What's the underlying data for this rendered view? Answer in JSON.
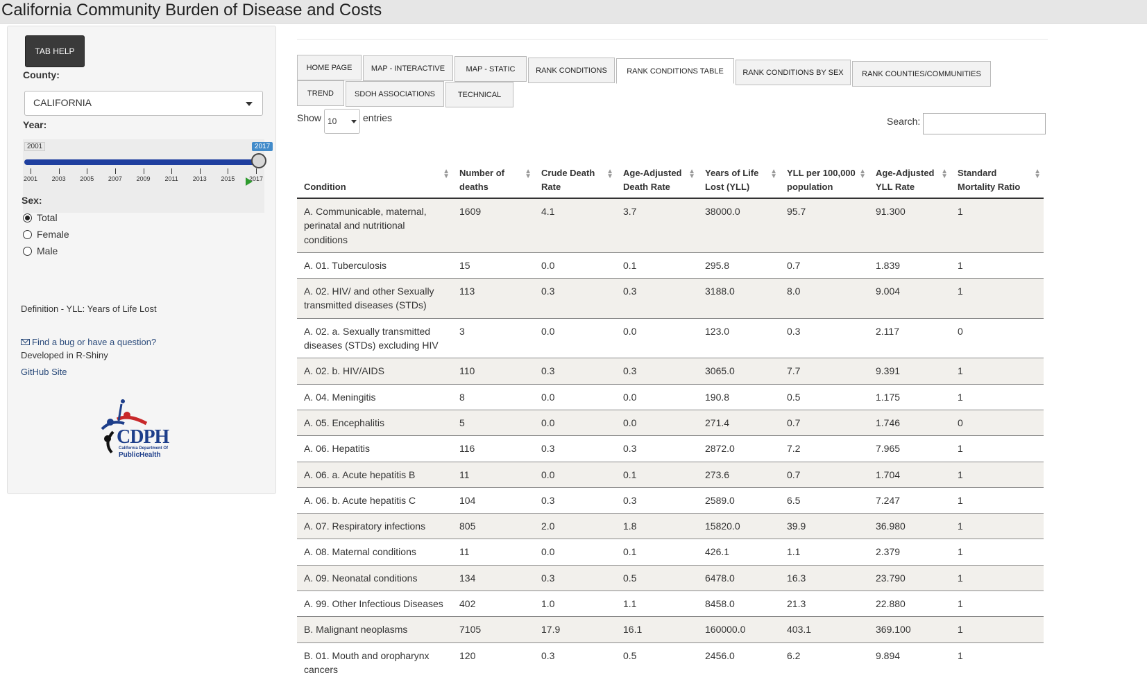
{
  "app": {
    "title": "California Community Burden of Disease and Costs"
  },
  "sidebar": {
    "tab_help_label": "TAB HELP",
    "county_label": "County:",
    "county_value": "CALIFORNIA",
    "year_label": "Year:",
    "year_slider": {
      "min": 2001,
      "max": 2017,
      "value": 2017,
      "min_label": "2001",
      "value_label": "2017",
      "tick_labels": [
        "2001",
        "2003",
        "2005",
        "2007",
        "2009",
        "2011",
        "2013",
        "2015",
        "2017"
      ]
    },
    "sex_label": "Sex:",
    "sex_options": [
      {
        "label": "Total",
        "checked": true
      },
      {
        "label": "Female",
        "checked": false
      },
      {
        "label": "Male",
        "checked": false
      }
    ],
    "definition": "Definition - YLL: Years of Life Lost",
    "bug_link": "Find a bug or have a question?",
    "developed_text": "Developed in R-Shiny",
    "github_link": "GitHub Site",
    "logo": {
      "name": "CDPH",
      "line1": "California Department Of",
      "line2": "PublicHealth"
    }
  },
  "tabs": [
    {
      "label": "HOME PAGE",
      "active": false
    },
    {
      "label": "MAP - INTERACTIVE",
      "active": false
    },
    {
      "label": "MAP - STATIC",
      "active": false
    },
    {
      "label": "RANK CONDITIONS",
      "active": false
    },
    {
      "label": "RANK CONDITIONS TABLE",
      "active": true
    },
    {
      "label": "RANK CONDITIONS BY SEX",
      "active": false
    },
    {
      "label": "RANK COUNTIES/COMMUNITIES",
      "active": false
    },
    {
      "label": "TREND",
      "active": false
    },
    {
      "label": "SDOH ASSOCIATIONS",
      "active": false
    },
    {
      "label": "TECHNICAL",
      "active": false
    }
  ],
  "table_controls": {
    "show_label": "Show",
    "entries_value": "10",
    "entries_label": "entries",
    "search_label": "Search:",
    "search_value": ""
  },
  "table": {
    "columns": [
      "Condition",
      "Number of deaths",
      "Crude Death Rate",
      "Age-Adjusted Death Rate",
      "Years of Life Lost (YLL)",
      "YLL per 100,000 population",
      "Age-Adjusted YLL Rate",
      "Standard Mortality Ratio"
    ],
    "rows": [
      [
        "A. Communicable, maternal, perinatal and nutritional conditions",
        "1609",
        "4.1",
        "3.7",
        "38000.0",
        "95.7",
        "91.300",
        "1"
      ],
      [
        "A. 01. Tuberculosis",
        "15",
        "0.0",
        "0.1",
        "295.8",
        "0.7",
        "1.839",
        "1"
      ],
      [
        "A. 02. HIV/ and other Sexually transmitted diseases (STDs)",
        "113",
        "0.3",
        "0.3",
        "3188.0",
        "8.0",
        "9.004",
        "1"
      ],
      [
        "A. 02. a. Sexually transmitted diseases (STDs) excluding HIV",
        "3",
        "0.0",
        "0.0",
        "123.0",
        "0.3",
        "2.117",
        "0"
      ],
      [
        "A. 02. b. HIV/AIDS",
        "110",
        "0.3",
        "0.3",
        "3065.0",
        "7.7",
        "9.391",
        "1"
      ],
      [
        "A. 04. Meningitis",
        "8",
        "0.0",
        "0.0",
        "190.8",
        "0.5",
        "1.175",
        "1"
      ],
      [
        "A. 05. Encephalitis",
        "5",
        "0.0",
        "0.0",
        "271.4",
        "0.7",
        "1.746",
        "0"
      ],
      [
        "A. 06. Hepatitis",
        "116",
        "0.3",
        "0.3",
        "2872.0",
        "7.2",
        "7.965",
        "1"
      ],
      [
        "A. 06. a. Acute hepatitis B",
        "11",
        "0.0",
        "0.1",
        "273.6",
        "0.7",
        "1.704",
        "1"
      ],
      [
        "A. 06. b. Acute hepatitis C",
        "104",
        "0.3",
        "0.3",
        "2589.0",
        "6.5",
        "7.247",
        "1"
      ],
      [
        "A. 07. Respiratory infections",
        "805",
        "2.0",
        "1.8",
        "15820.0",
        "39.9",
        "36.980",
        "1"
      ],
      [
        "A. 08. Maternal conditions",
        "11",
        "0.0",
        "0.1",
        "426.1",
        "1.1",
        "2.379",
        "1"
      ],
      [
        "A. 09. Neonatal conditions",
        "134",
        "0.3",
        "0.5",
        "6478.0",
        "16.3",
        "23.790",
        "1"
      ],
      [
        "A. 99. Other Infectious Diseases",
        "402",
        "1.0",
        "1.1",
        "8458.0",
        "21.3",
        "22.880",
        "1"
      ],
      [
        "B. Malignant neoplasms",
        "7105",
        "17.9",
        "16.1",
        "160000.0",
        "403.1",
        "369.100",
        "1"
      ],
      [
        "B. 01. Mouth and oropharynx cancers",
        "120",
        "0.3",
        "0.5",
        "2456.0",
        "6.2",
        "9.894",
        "1"
      ]
    ]
  }
}
